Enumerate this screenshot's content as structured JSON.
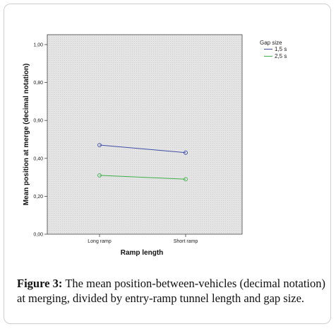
{
  "chart_data": {
    "type": "line",
    "categories": [
      "Long ramp",
      "Short ramp"
    ],
    "series": [
      {
        "name": "1,5 s",
        "values": [
          0.47,
          0.43
        ],
        "color": "#3f4fa8"
      },
      {
        "name": "2,5 s",
        "values": [
          0.31,
          0.29
        ],
        "color": "#3fb04a"
      }
    ],
    "ylim": [
      0,
      1
    ],
    "yticks": [
      "0,00",
      "0,20",
      "0,40",
      "0,60",
      "0,80",
      "1,00"
    ],
    "xlabel": "Ramp length",
    "ylabel": "Mean position at merge (decimal notation)",
    "legend_title": "Gap size",
    "legend_position": "top-right",
    "plot_background": "#e6e6e6",
    "grid": false
  },
  "caption": {
    "label": "Figure 3:",
    "text": "The mean position-between-vehicles (decimal notation) at merging, divided by entry-ramp tunnel length and gap size."
  }
}
